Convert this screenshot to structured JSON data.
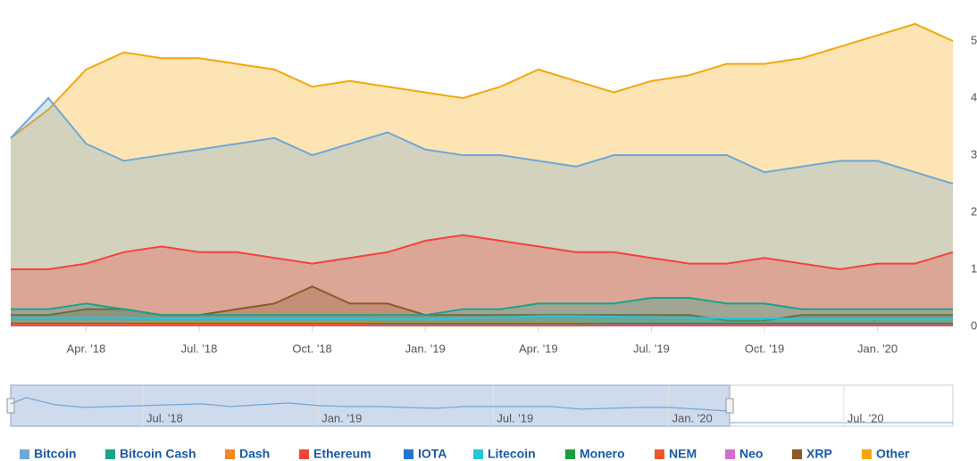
{
  "chart_data": {
    "type": "area",
    "x": [
      "2018-02",
      "2018-03",
      "2018-04",
      "2018-05",
      "2018-06",
      "2018-07",
      "2018-08",
      "2018-09",
      "2018-10",
      "2018-11",
      "2018-12",
      "2019-01",
      "2019-02",
      "2019-03",
      "2019-04",
      "2019-05",
      "2019-06",
      "2019-07",
      "2019-08",
      "2019-09",
      "2019-10",
      "2019-11",
      "2019-12",
      "2020-01",
      "2020-02",
      "2020-03"
    ],
    "xticks": [
      {
        "value": "2018-04",
        "label": "Apr. '18"
      },
      {
        "value": "2018-07",
        "label": "Jul. '18"
      },
      {
        "value": "2018-10",
        "label": "Oct. '18"
      },
      {
        "value": "2019-01",
        "label": "Jan. '19"
      },
      {
        "value": "2019-04",
        "label": "Apr. '19"
      },
      {
        "value": "2019-07",
        "label": "Jul. '19"
      },
      {
        "value": "2019-10",
        "label": "Oct. '19"
      },
      {
        "value": "2020-01",
        "label": "Jan. '20"
      }
    ],
    "ylim": [
      0,
      55
    ],
    "yticks": [
      0,
      10,
      20,
      30,
      40,
      50
    ],
    "grid": false,
    "legend": "bottom",
    "series": [
      {
        "name": "Bitcoin",
        "color": "#6fa8d6",
        "values": [
          33,
          40,
          32,
          29,
          30,
          31,
          32,
          33,
          30,
          32,
          34,
          31,
          30,
          30,
          29,
          28,
          30,
          30,
          30,
          30,
          27,
          28,
          29,
          29,
          27,
          25
        ]
      },
      {
        "name": "Bitcoin Cash",
        "color": "#1aa38c",
        "values": [
          3,
          3,
          4,
          3,
          2,
          2,
          2,
          2,
          2,
          2,
          2,
          2,
          3,
          3,
          4,
          4,
          4,
          5,
          5,
          4,
          4,
          3,
          3,
          3,
          3,
          3
        ]
      },
      {
        "name": "Dash",
        "color": "#f5871f",
        "values": [
          0.8,
          0.8,
          0.8,
          0.8,
          0.7,
          0.7,
          0.7,
          0.7,
          0.7,
          0.7,
          0.6,
          0.6,
          0.6,
          0.6,
          0.6,
          0.6,
          0.5,
          0.5,
          0.5,
          0.5,
          0.5,
          0.5,
          0.5,
          0.5,
          0.5,
          0.5
        ]
      },
      {
        "name": "Ethereum",
        "color": "#f4433b",
        "values": [
          10,
          10,
          11,
          13,
          14,
          13,
          13,
          12,
          11,
          12,
          13,
          15,
          16,
          15,
          14,
          13,
          13,
          12,
          11,
          11,
          12,
          11,
          10,
          11,
          11,
          13
        ]
      },
      {
        "name": "IOTA",
        "color": "#1e78d2",
        "values": [
          0.5,
          0.5,
          0.5,
          0.5,
          0.4,
          0.4,
          0.4,
          0.4,
          0.4,
          0.4,
          0.3,
          0.3,
          0.3,
          0.3,
          0.3,
          0.3,
          0.3,
          0.3,
          0.3,
          0.3,
          0.3,
          0.3,
          0.3,
          0.3,
          0.3,
          0.3
        ]
      },
      {
        "name": "Litecoin",
        "color": "#26c6da",
        "values": [
          1.5,
          1.5,
          1.5,
          1.5,
          1.4,
          1.4,
          1.4,
          1.4,
          1.4,
          1.4,
          1.3,
          1.3,
          1.5,
          1.6,
          1.8,
          1.8,
          1.7,
          1.6,
          1.5,
          1.4,
          1.4,
          1.3,
          1.3,
          1.3,
          1.3,
          1.3
        ]
      },
      {
        "name": "Monero",
        "color": "#1a9f3f",
        "values": [
          0.5,
          0.5,
          0.5,
          0.5,
          0.5,
          0.5,
          0.5,
          0.5,
          0.5,
          0.5,
          0.5,
          0.5,
          0.5,
          0.5,
          0.5,
          0.5,
          0.5,
          0.5,
          0.5,
          0.5,
          0.5,
          0.5,
          0.5,
          0.5,
          0.5,
          0.5
        ]
      },
      {
        "name": "NEM",
        "color": "#f0562a",
        "values": [
          0.3,
          0.3,
          0.3,
          0.3,
          0.3,
          0.3,
          0.3,
          0.3,
          0.3,
          0.3,
          0.2,
          0.2,
          0.2,
          0.2,
          0.2,
          0.2,
          0.2,
          0.2,
          0.2,
          0.2,
          0.2,
          0.2,
          0.2,
          0.2,
          0.2,
          0.2
        ]
      },
      {
        "name": "Neo",
        "color": "#d36ed0",
        "values": [
          0.3,
          0.3,
          0.3,
          0.3,
          0.3,
          0.3,
          0.3,
          0.3,
          0.3,
          0.3,
          0.2,
          0.2,
          0.2,
          0.2,
          0.2,
          0.2,
          0.2,
          0.2,
          0.2,
          0.2,
          0.2,
          0.2,
          0.2,
          0.2,
          0.2,
          0.2
        ]
      },
      {
        "name": "XRP",
        "color": "#8a5a2a",
        "values": [
          2,
          2,
          3,
          3,
          2,
          2,
          3,
          4,
          7,
          4,
          4,
          2,
          2,
          2,
          2,
          2,
          2,
          2,
          2,
          1,
          1,
          2,
          2,
          2,
          2,
          2
        ]
      },
      {
        "name": "Other",
        "color": "#f5a70a",
        "values": [
          33,
          38,
          45,
          48,
          47,
          47,
          46,
          45,
          42,
          43,
          42,
          41,
          40,
          42,
          45,
          43,
          41,
          43,
          44,
          46,
          46,
          47,
          49,
          51,
          53,
          50
        ]
      }
    ],
    "navigator": {
      "xticks": [
        {
          "value": "2018-07",
          "label": "Jul. '18"
        },
        {
          "value": "2019-01",
          "label": "Jan. '19"
        },
        {
          "value": "2019-07",
          "label": "Jul. '19"
        },
        {
          "value": "2020-01",
          "label": "Jan. '20"
        },
        {
          "value": "2020-07",
          "label": "Jul. '20"
        }
      ]
    }
  }
}
